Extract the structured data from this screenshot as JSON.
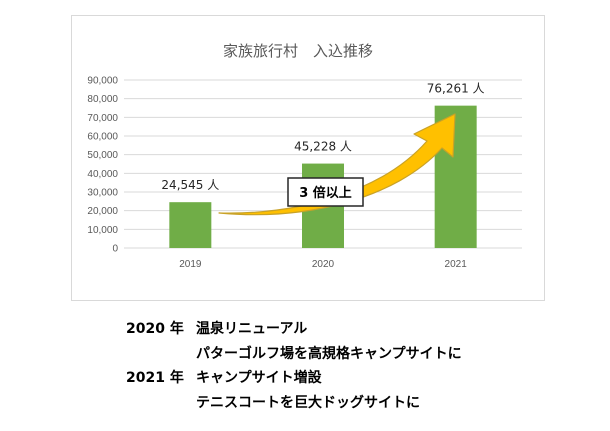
{
  "chart_data": {
    "type": "bar",
    "title": "家族旅行村　入込推移",
    "categories": [
      "2019",
      "2020",
      "2021"
    ],
    "values": [
      24545,
      45228,
      76261
    ],
    "data_labels": [
      "24,545 人",
      "45,228 人",
      "76,261 人"
    ],
    "ylim": [
      0,
      90000
    ],
    "yticks": [
      "0",
      "10,000",
      "20,000",
      "30,000",
      "40,000",
      "50,000",
      "60,000",
      "70,000",
      "80,000",
      "90,000"
    ],
    "grid": true,
    "legend": "none",
    "bar_color": "#70ad47",
    "annotation": {
      "text": "3 倍以上",
      "arrow_color": "#ffc000"
    }
  },
  "notes": [
    {
      "year": "2020 年",
      "text": "温泉リニューアル"
    },
    {
      "year": "",
      "text": "パターゴルフ場を高規格キャンプサイトに"
    },
    {
      "year": "2021 年",
      "text": "キャンプサイト増設"
    },
    {
      "year": "",
      "text": "テニスコートを巨大ドッグサイトに"
    }
  ]
}
